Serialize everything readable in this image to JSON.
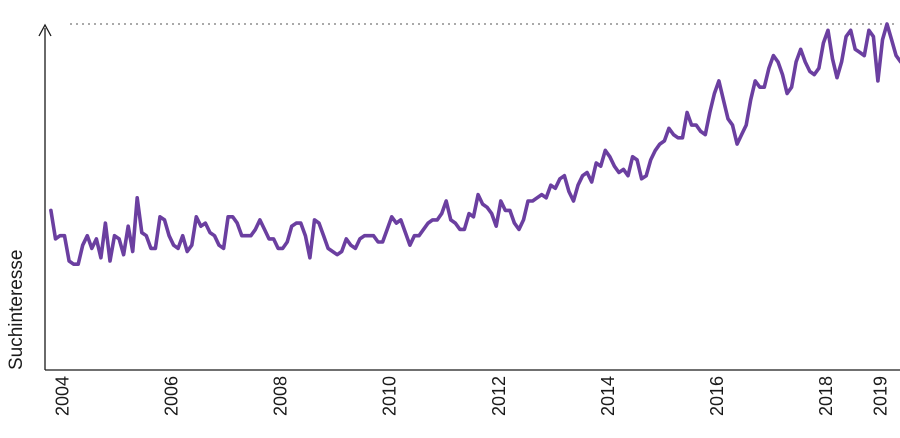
{
  "chart_data": {
    "type": "line",
    "title": "",
    "xlabel": "",
    "ylabel": "Suchinteresse",
    "xlim": [
      2003.7,
      2019.3
    ],
    "ylim": [
      0,
      100
    ],
    "grid": false,
    "legend": "none",
    "line_color": "#6b3fa0",
    "reference_line": {
      "y": 100,
      "style": "dotted"
    },
    "x_ticks": [
      2004,
      2006,
      2008,
      2010,
      2012,
      2014,
      2016,
      2018,
      2019
    ],
    "x_tick_labels": [
      "2004",
      "2006",
      "2008",
      "2010",
      "2012",
      "2014",
      "2016",
      "2018",
      "2019"
    ],
    "series": [
      {
        "name": "Suchinteresse",
        "x_start": 2003.79,
        "x_step": 0.0833,
        "values": [
          41,
          32,
          33,
          33,
          25,
          24,
          24,
          30,
          33,
          29,
          32,
          26,
          37,
          25,
          33,
          32,
          27,
          36,
          28,
          45,
          34,
          33,
          29,
          29,
          39,
          38,
          33,
          30,
          29,
          33,
          28,
          30,
          39,
          36,
          37,
          34,
          33,
          30,
          29,
          39,
          39,
          37,
          33,
          33,
          33,
          35,
          38,
          35,
          32,
          32,
          29,
          29,
          31,
          36,
          37,
          37,
          33,
          26,
          38,
          37,
          33,
          29,
          28,
          27,
          28,
          32,
          30,
          29,
          32,
          33,
          33,
          33,
          31,
          31,
          35,
          39,
          37,
          38,
          34,
          30,
          33,
          33,
          35,
          37,
          38,
          38,
          40,
          44,
          38,
          37,
          35,
          35,
          40,
          39,
          46,
          43,
          42,
          40,
          36,
          44,
          41,
          41,
          37,
          35,
          38,
          44,
          44,
          45,
          46,
          45,
          49,
          48,
          51,
          52,
          47,
          44,
          49,
          52,
          53,
          50,
          56,
          55,
          60,
          58,
          55,
          53,
          54,
          52,
          58,
          57,
          51,
          52,
          57,
          60,
          62,
          63,
          67,
          65,
          64,
          64,
          72,
          68,
          68,
          66,
          65,
          72,
          78,
          82,
          76,
          70,
          68,
          62,
          65,
          68,
          76,
          82,
          80,
          80,
          86,
          90,
          88,
          84,
          78,
          80,
          88,
          92,
          88,
          85,
          84,
          86,
          94,
          98,
          89,
          83,
          88,
          96,
          98,
          92,
          91,
          90,
          98,
          96,
          82,
          95,
          100,
          95,
          90,
          88,
          90,
          94,
          98,
          100
        ]
      }
    ]
  }
}
